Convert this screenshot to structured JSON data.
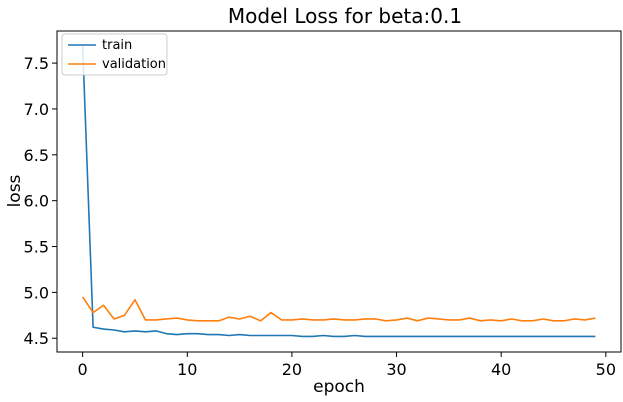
{
  "chart_data": {
    "type": "line",
    "title": "Model Loss for beta:0.1",
    "xlabel": "epoch",
    "ylabel": "loss",
    "xlim": [
      -2.45,
      51.45
    ],
    "ylim": [
      4.35,
      7.85
    ],
    "xticks": [
      0,
      10,
      20,
      30,
      40,
      50
    ],
    "yticks": [
      4.5,
      5.0,
      5.5,
      6.0,
      6.5,
      7.0,
      7.5
    ],
    "ytick_labels": [
      "4.5",
      "5.0",
      "5.5",
      "6.0",
      "6.5",
      "7.0",
      "7.5"
    ],
    "grid": false,
    "legend_position": "upper-left",
    "x": [
      0,
      1,
      2,
      3,
      4,
      5,
      6,
      7,
      8,
      9,
      10,
      11,
      12,
      13,
      14,
      15,
      16,
      17,
      18,
      19,
      20,
      21,
      22,
      23,
      24,
      25,
      26,
      27,
      28,
      29,
      30,
      31,
      32,
      33,
      34,
      35,
      36,
      37,
      38,
      39,
      40,
      41,
      42,
      43,
      44,
      45,
      46,
      47,
      48,
      49
    ],
    "series": [
      {
        "name": "train",
        "color": "#1f77b4",
        "values": [
          7.7,
          4.62,
          4.6,
          4.59,
          4.57,
          4.58,
          4.57,
          4.58,
          4.55,
          4.54,
          4.55,
          4.55,
          4.54,
          4.54,
          4.53,
          4.54,
          4.53,
          4.53,
          4.53,
          4.53,
          4.53,
          4.52,
          4.52,
          4.53,
          4.52,
          4.52,
          4.53,
          4.52,
          4.52,
          4.52,
          4.52,
          4.52,
          4.52,
          4.52,
          4.52,
          4.52,
          4.52,
          4.52,
          4.52,
          4.52,
          4.52,
          4.52,
          4.52,
          4.52,
          4.52,
          4.52,
          4.52,
          4.52,
          4.52,
          4.52
        ]
      },
      {
        "name": "validation",
        "color": "#ff7f0e",
        "values": [
          4.95,
          4.78,
          4.86,
          4.71,
          4.75,
          4.92,
          4.7,
          4.7,
          4.71,
          4.72,
          4.7,
          4.69,
          4.69,
          4.69,
          4.73,
          4.71,
          4.74,
          4.69,
          4.78,
          4.7,
          4.7,
          4.71,
          4.7,
          4.7,
          4.71,
          4.7,
          4.7,
          4.71,
          4.71,
          4.69,
          4.7,
          4.72,
          4.69,
          4.72,
          4.71,
          4.7,
          4.7,
          4.72,
          4.69,
          4.7,
          4.69,
          4.71,
          4.69,
          4.69,
          4.71,
          4.69,
          4.69,
          4.71,
          4.7,
          4.72
        ]
      }
    ]
  }
}
